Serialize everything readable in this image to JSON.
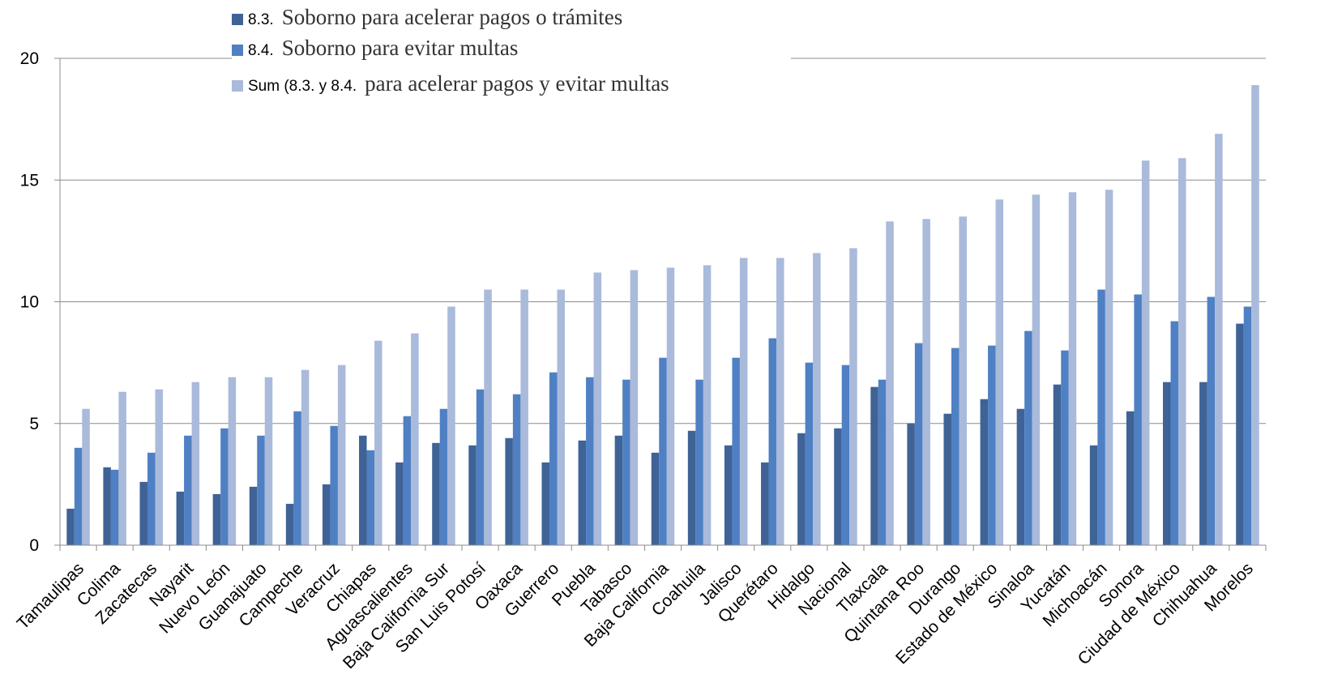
{
  "chart_data": {
    "type": "bar",
    "categories": [
      "Tamaulipas",
      "Colima",
      "Zacatecas",
      "Nayarit",
      "Nuevo León",
      "Guanajuato",
      "Campeche",
      "Veracruz",
      "Chiapas",
      "Aguascalientes",
      "Baja California Sur",
      "San Luis Potosí",
      "Oaxaca",
      "Guerrero",
      "Puebla",
      "Tabasco",
      "Baja California",
      "Coahuila",
      "Jalisco",
      "Querétaro",
      "Hidalgo",
      "Nacional",
      "Tlaxcala",
      "Quintana Roo",
      "Durango",
      "Estado de México",
      "Sinaloa",
      "Yucatán",
      "Michoacán",
      "Sonora",
      "Ciudad de México",
      "Chihuahua",
      "Morelos"
    ],
    "series": [
      {
        "code": "8.3.",
        "name": "Soborno para acelerar pagos o trámites",
        "color": "#3f6396",
        "values": [
          1.5,
          3.2,
          2.6,
          2.2,
          2.1,
          2.4,
          1.7,
          2.5,
          4.5,
          3.4,
          4.2,
          4.1,
          4.4,
          3.4,
          4.3,
          4.5,
          3.8,
          4.7,
          4.1,
          3.4,
          4.6,
          4.8,
          6.5,
          5.0,
          5.4,
          6.0,
          5.6,
          6.6,
          4.1,
          5.5,
          6.7,
          6.7,
          9.1
        ]
      },
      {
        "code": "8.4.",
        "name": "Soborno para evitar multas",
        "color": "#4f80c3",
        "values": [
          4.0,
          3.1,
          3.8,
          4.5,
          4.8,
          4.5,
          5.5,
          4.9,
          3.9,
          5.3,
          5.6,
          6.4,
          6.2,
          7.1,
          6.9,
          6.8,
          7.7,
          6.8,
          7.7,
          8.5,
          7.5,
          7.4,
          6.8,
          8.3,
          8.1,
          8.2,
          8.8,
          8.0,
          10.5,
          10.3,
          9.2,
          10.2,
          9.8
        ]
      },
      {
        "code": "Sum (8.3. y 8.4.",
        "name": "para acelerar pagos y evitar multas",
        "color": "#a9badb",
        "values": [
          5.6,
          6.3,
          6.4,
          6.7,
          6.9,
          6.9,
          7.2,
          7.4,
          8.4,
          8.7,
          9.8,
          10.5,
          10.5,
          10.5,
          11.2,
          11.3,
          11.4,
          11.5,
          11.8,
          11.8,
          12.0,
          12.2,
          13.3,
          13.4,
          13.5,
          14.2,
          14.4,
          14.5,
          14.6,
          15.8,
          15.9,
          16.9,
          18.9
        ]
      }
    ],
    "y_ticks": [
      0,
      5,
      10,
      15,
      20
    ],
    "ylim": [
      0,
      20
    ],
    "grid": true,
    "legend_position": "top-left"
  }
}
